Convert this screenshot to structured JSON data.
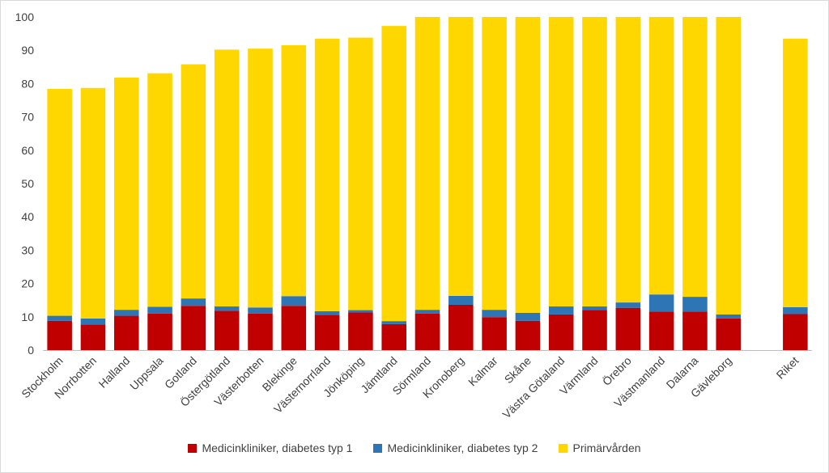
{
  "chart_data": {
    "type": "bar",
    "stacked": true,
    "categories": [
      "Stockholm",
      "Norrbotten",
      "Halland",
      "Uppsala",
      "Gotland",
      "Östergötland",
      "Västerbotten",
      "Blekinge",
      "Västernorrland",
      "Jönköping",
      "Jämtland",
      "Sörmland",
      "Kronoberg",
      "Kalmar",
      "Skåne",
      "Västra Götaland",
      "Värmland",
      "Örebro",
      "Västmanland",
      "Dalarna",
      "Gävleborg",
      "",
      "Riket"
    ],
    "series": [
      {
        "name": "Medicinkliniker, diabetes typ 1",
        "color": "#C00000",
        "values": [
          8.8,
          7.7,
          10.3,
          11.0,
          13.3,
          11.8,
          11.0,
          13.3,
          10.6,
          11.3,
          7.8,
          11.0,
          13.6,
          9.9,
          8.8,
          10.7,
          12.0,
          12.7,
          11.6,
          11.6,
          9.5,
          null,
          10.8
        ]
      },
      {
        "name": "Medicinkliniker, diabetes typ 2",
        "color": "#2E75B6",
        "values": [
          1.5,
          1.8,
          1.8,
          2.0,
          2.2,
          1.3,
          1.8,
          2.9,
          1.1,
          0.7,
          0.9,
          1.1,
          2.7,
          2.2,
          2.4,
          2.4,
          1.1,
          1.6,
          5.1,
          4.4,
          1.2,
          null,
          2.1
        ]
      },
      {
        "name": "Primärvården",
        "color": "#FFD700",
        "values": [
          68.1,
          69.2,
          69.7,
          70.1,
          70.3,
          77.1,
          77.7,
          75.3,
          81.8,
          81.8,
          88.6,
          87.9,
          83.7,
          87.9,
          88.8,
          86.9,
          86.9,
          85.7,
          83.3,
          84.0,
          89.3,
          null,
          80.6
        ]
      }
    ],
    "ylim": [
      0,
      100
    ],
    "yticks": [
      0,
      10,
      20,
      30,
      40,
      50,
      60,
      70,
      80,
      90,
      100
    ],
    "grid": false,
    "legend_position": "bottom"
  }
}
